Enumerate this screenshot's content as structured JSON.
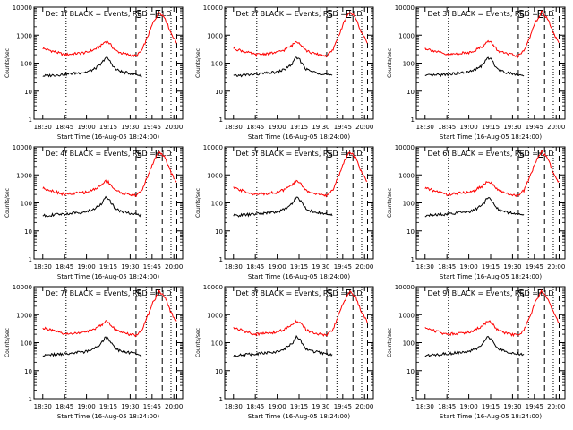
{
  "chart_data": {
    "type": "line",
    "layout": "3x3 grid of panels",
    "yscale": "log",
    "ylim": [
      1,
      10000
    ],
    "ylabel": "Counts/sec",
    "yticks": [
      1,
      10,
      100,
      1000,
      10000
    ],
    "ytick_labels": [
      "1",
      "10",
      "100",
      "1000",
      "10000"
    ],
    "xlabel": "Start Time (16-Aug-05 18:24:00)",
    "xlim": [
      "18:24",
      "20:06"
    ],
    "xticks": [
      "18:30",
      "18:45",
      "19:00",
      "19:15",
      "19:30",
      "19:45",
      "20:00"
    ],
    "series_colors": {
      "black": "#000000",
      "red": "#ff0000"
    },
    "markers": {
      "dotted": [
        "18:46",
        "19:41",
        "19:58"
      ],
      "dashed": [
        "19:34",
        "19:52",
        "20:02"
      ],
      "labels": [
        {
          "text": "S",
          "at": "19:36"
        },
        {
          "text": "E",
          "at": "19:49"
        }
      ]
    },
    "panels": [
      {
        "title": "Det 1f BLACK = Events, RED = LLD"
      },
      {
        "title": "Det 2f BLACK = Events, RED = LLD"
      },
      {
        "title": "Det 3f BLACK = Events, RED = LLD"
      },
      {
        "title": "Det 4f BLACK = Events, RED = LLD"
      },
      {
        "title": "Det 5f BLACK = Events, RED = LLD"
      },
      {
        "title": "Det 6f BLACK = Events, RED = LLD"
      },
      {
        "title": "Det 7f BLACK = Events, RED = LLD"
      },
      {
        "title": "Det 8f BLACK = Events, RED = LLD"
      },
      {
        "title": "Det 9f BLACK = Events, RED = LLD"
      }
    ],
    "profile_times": [
      "18:30",
      "18:45",
      "19:00",
      "19:05",
      "19:10",
      "19:13",
      "19:15",
      "19:20",
      "19:25",
      "19:34",
      "19:38",
      "19:42",
      "19:46",
      "19:50",
      "19:54",
      "19:58",
      "20:02"
    ],
    "black_profile": [
      35,
      40,
      48,
      60,
      90,
      160,
      140,
      60,
      48,
      40,
      35,
      null,
      null,
      null,
      null,
      null,
      null
    ],
    "red_profile": [
      340,
      200,
      240,
      300,
      420,
      600,
      560,
      280,
      220,
      180,
      280,
      900,
      3000,
      7000,
      4000,
      1200,
      520
    ]
  }
}
